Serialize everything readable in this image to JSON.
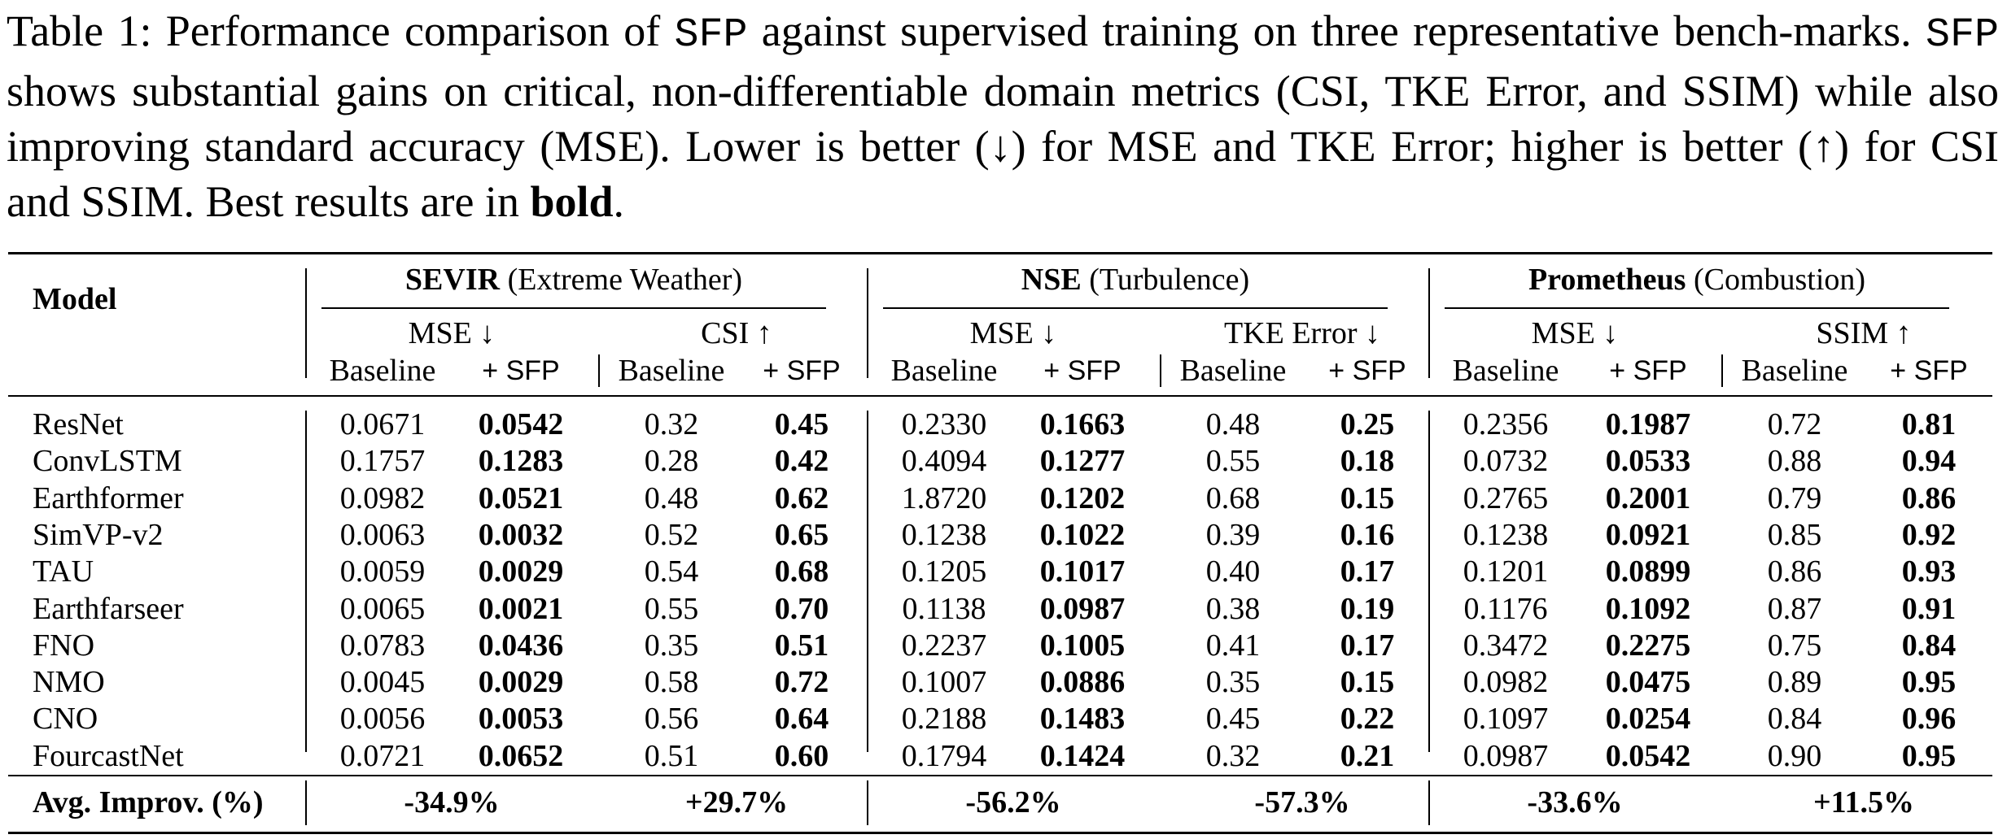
{
  "caption": {
    "label": "Table 1:",
    "text_1": " Performance comparison of ",
    "method": "SFP",
    "text_2": " against supervised training on three representative bench-marks. ",
    "text_3": " shows substantial gains on critical, non-differentiable domain metrics (CSI, TKE Error, and SSIM) while also improving standard accuracy (MSE). Lower is better (↓) for MSE and TKE Error; higher is better (↑) for CSI and SSIM. Best results are in ",
    "bold_word": "bold",
    "end": "."
  },
  "table": {
    "model_header": "Model",
    "groups": [
      {
        "name": "SEVIR",
        "desc": "(Extreme Weather)",
        "metrics": [
          "MSE ↓",
          "CSI ↑"
        ]
      },
      {
        "name": "NSE",
        "desc": "(Turbulence)",
        "metrics": [
          "MSE ↓",
          "TKE Error ↓"
        ]
      },
      {
        "name": "Prometheus",
        "desc": "(Combustion)",
        "metrics": [
          "MSE ↓",
          "SSIM ↑"
        ]
      }
    ],
    "subheaders": [
      "Baseline",
      "+ SFP"
    ],
    "rows": [
      {
        "model": "ResNet",
        "values": [
          "0.0671",
          "0.0542",
          "0.32",
          "0.45",
          "0.2330",
          "0.1663",
          "0.48",
          "0.25",
          "0.2356",
          "0.1987",
          "0.72",
          "0.81"
        ]
      },
      {
        "model": "ConvLSTM",
        "values": [
          "0.1757",
          "0.1283",
          "0.28",
          "0.42",
          "0.4094",
          "0.1277",
          "0.55",
          "0.18",
          "0.0732",
          "0.0533",
          "0.88",
          "0.94"
        ]
      },
      {
        "model": "Earthformer",
        "values": [
          "0.0982",
          "0.0521",
          "0.48",
          "0.62",
          "1.8720",
          "0.1202",
          "0.68",
          "0.15",
          "0.2765",
          "0.2001",
          "0.79",
          "0.86"
        ]
      },
      {
        "model": "SimVP-v2",
        "values": [
          "0.0063",
          "0.0032",
          "0.52",
          "0.65",
          "0.1238",
          "0.1022",
          "0.39",
          "0.16",
          "0.1238",
          "0.0921",
          "0.85",
          "0.92"
        ]
      },
      {
        "model": "TAU",
        "values": [
          "0.0059",
          "0.0029",
          "0.54",
          "0.68",
          "0.1205",
          "0.1017",
          "0.40",
          "0.17",
          "0.1201",
          "0.0899",
          "0.86",
          "0.93"
        ]
      },
      {
        "model": "Earthfarseer",
        "values": [
          "0.0065",
          "0.0021",
          "0.55",
          "0.70",
          "0.1138",
          "0.0987",
          "0.38",
          "0.19",
          "0.1176",
          "0.1092",
          "0.87",
          "0.91"
        ]
      },
      {
        "model": "FNO",
        "values": [
          "0.0783",
          "0.0436",
          "0.35",
          "0.51",
          "0.2237",
          "0.1005",
          "0.41",
          "0.17",
          "0.3472",
          "0.2275",
          "0.75",
          "0.84"
        ]
      },
      {
        "model": "NMO",
        "values": [
          "0.0045",
          "0.0029",
          "0.58",
          "0.72",
          "0.1007",
          "0.0886",
          "0.35",
          "0.15",
          "0.0982",
          "0.0475",
          "0.89",
          "0.95"
        ]
      },
      {
        "model": "CNO",
        "values": [
          "0.0056",
          "0.0053",
          "0.56",
          "0.64",
          "0.2188",
          "0.1483",
          "0.45",
          "0.22",
          "0.1097",
          "0.0254",
          "0.84",
          "0.96"
        ]
      },
      {
        "model": "FourcastNet",
        "values": [
          "0.0721",
          "0.0652",
          "0.51",
          "0.60",
          "0.1794",
          "0.1424",
          "0.32",
          "0.21",
          "0.0987",
          "0.0542",
          "0.90",
          "0.95"
        ]
      }
    ],
    "avg_label": "Avg. Improv. (%)",
    "avg_values": [
      "-34.9%",
      "+29.7%",
      "-56.2%",
      "-57.3%",
      "-33.6%",
      "+11.5%"
    ]
  }
}
